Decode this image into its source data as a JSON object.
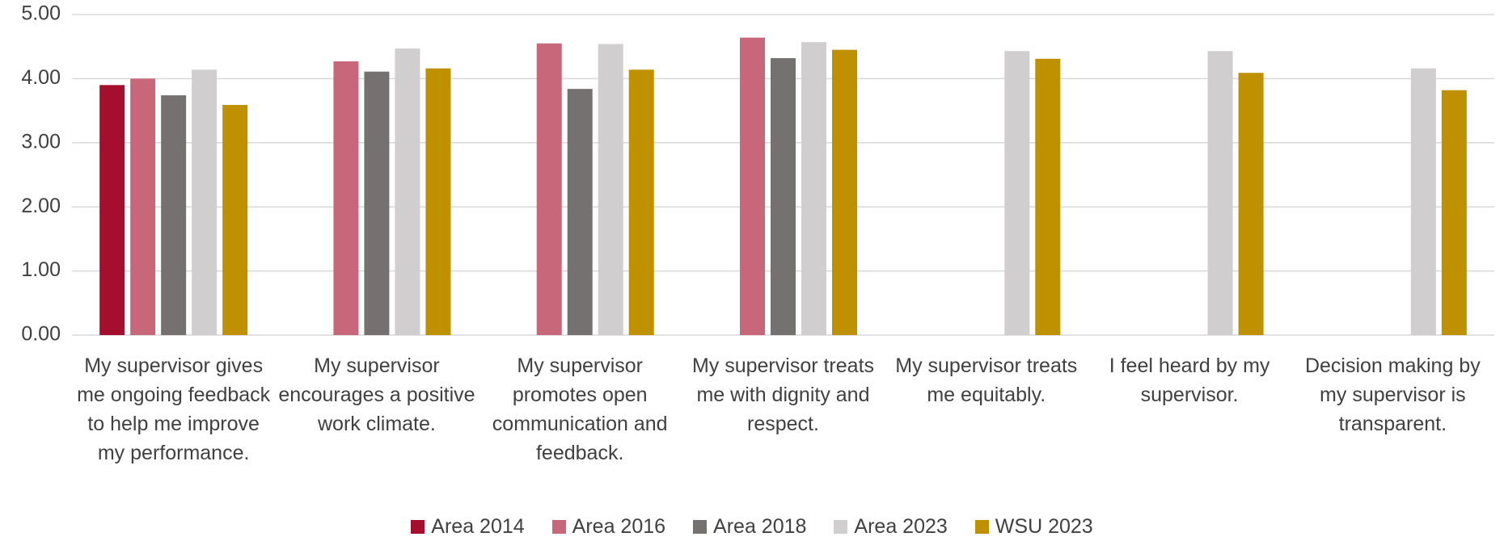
{
  "chart_data": {
    "type": "bar",
    "categories": [
      "My supervisor gives me ongoing feedback to help me improve my performance.",
      "My supervisor encourages a positive work climate.",
      "My supervisor promotes open communication and feedback.",
      "My supervisor treats me with dignity and respect.",
      "My supervisor treats me equitably.",
      "I feel heard by my supervisor.",
      "Decision making by my supervisor is transparent."
    ],
    "series": [
      {
        "name": "Area 2014",
        "color": "#a50f2d",
        "values": [
          3.9,
          null,
          null,
          null,
          null,
          null,
          null
        ]
      },
      {
        "name": "Area 2016",
        "color": "#c8677a",
        "values": [
          4.0,
          4.27,
          4.55,
          4.64,
          null,
          null,
          null
        ]
      },
      {
        "name": "Area 2018",
        "color": "#767171",
        "values": [
          3.74,
          4.11,
          3.84,
          4.32,
          null,
          null,
          null
        ]
      },
      {
        "name": "Area 2023",
        "color": "#d0cece",
        "values": [
          4.14,
          4.47,
          4.54,
          4.57,
          4.43,
          4.43,
          4.16
        ]
      },
      {
        "name": "WSU 2023",
        "color": "#bf9000",
        "values": [
          3.59,
          4.16,
          4.14,
          4.45,
          4.31,
          4.09,
          3.82
        ]
      }
    ],
    "ylim": [
      0,
      5
    ],
    "yticks": [
      {
        "value": 0,
        "label": "0.00"
      },
      {
        "value": 1,
        "label": "1.00"
      },
      {
        "value": 2,
        "label": "2.00"
      },
      {
        "value": 3,
        "label": "3.00"
      },
      {
        "value": 4,
        "label": "4.00"
      },
      {
        "value": 5,
        "label": "5.00"
      }
    ],
    "grid": true,
    "legend": "bottom"
  }
}
